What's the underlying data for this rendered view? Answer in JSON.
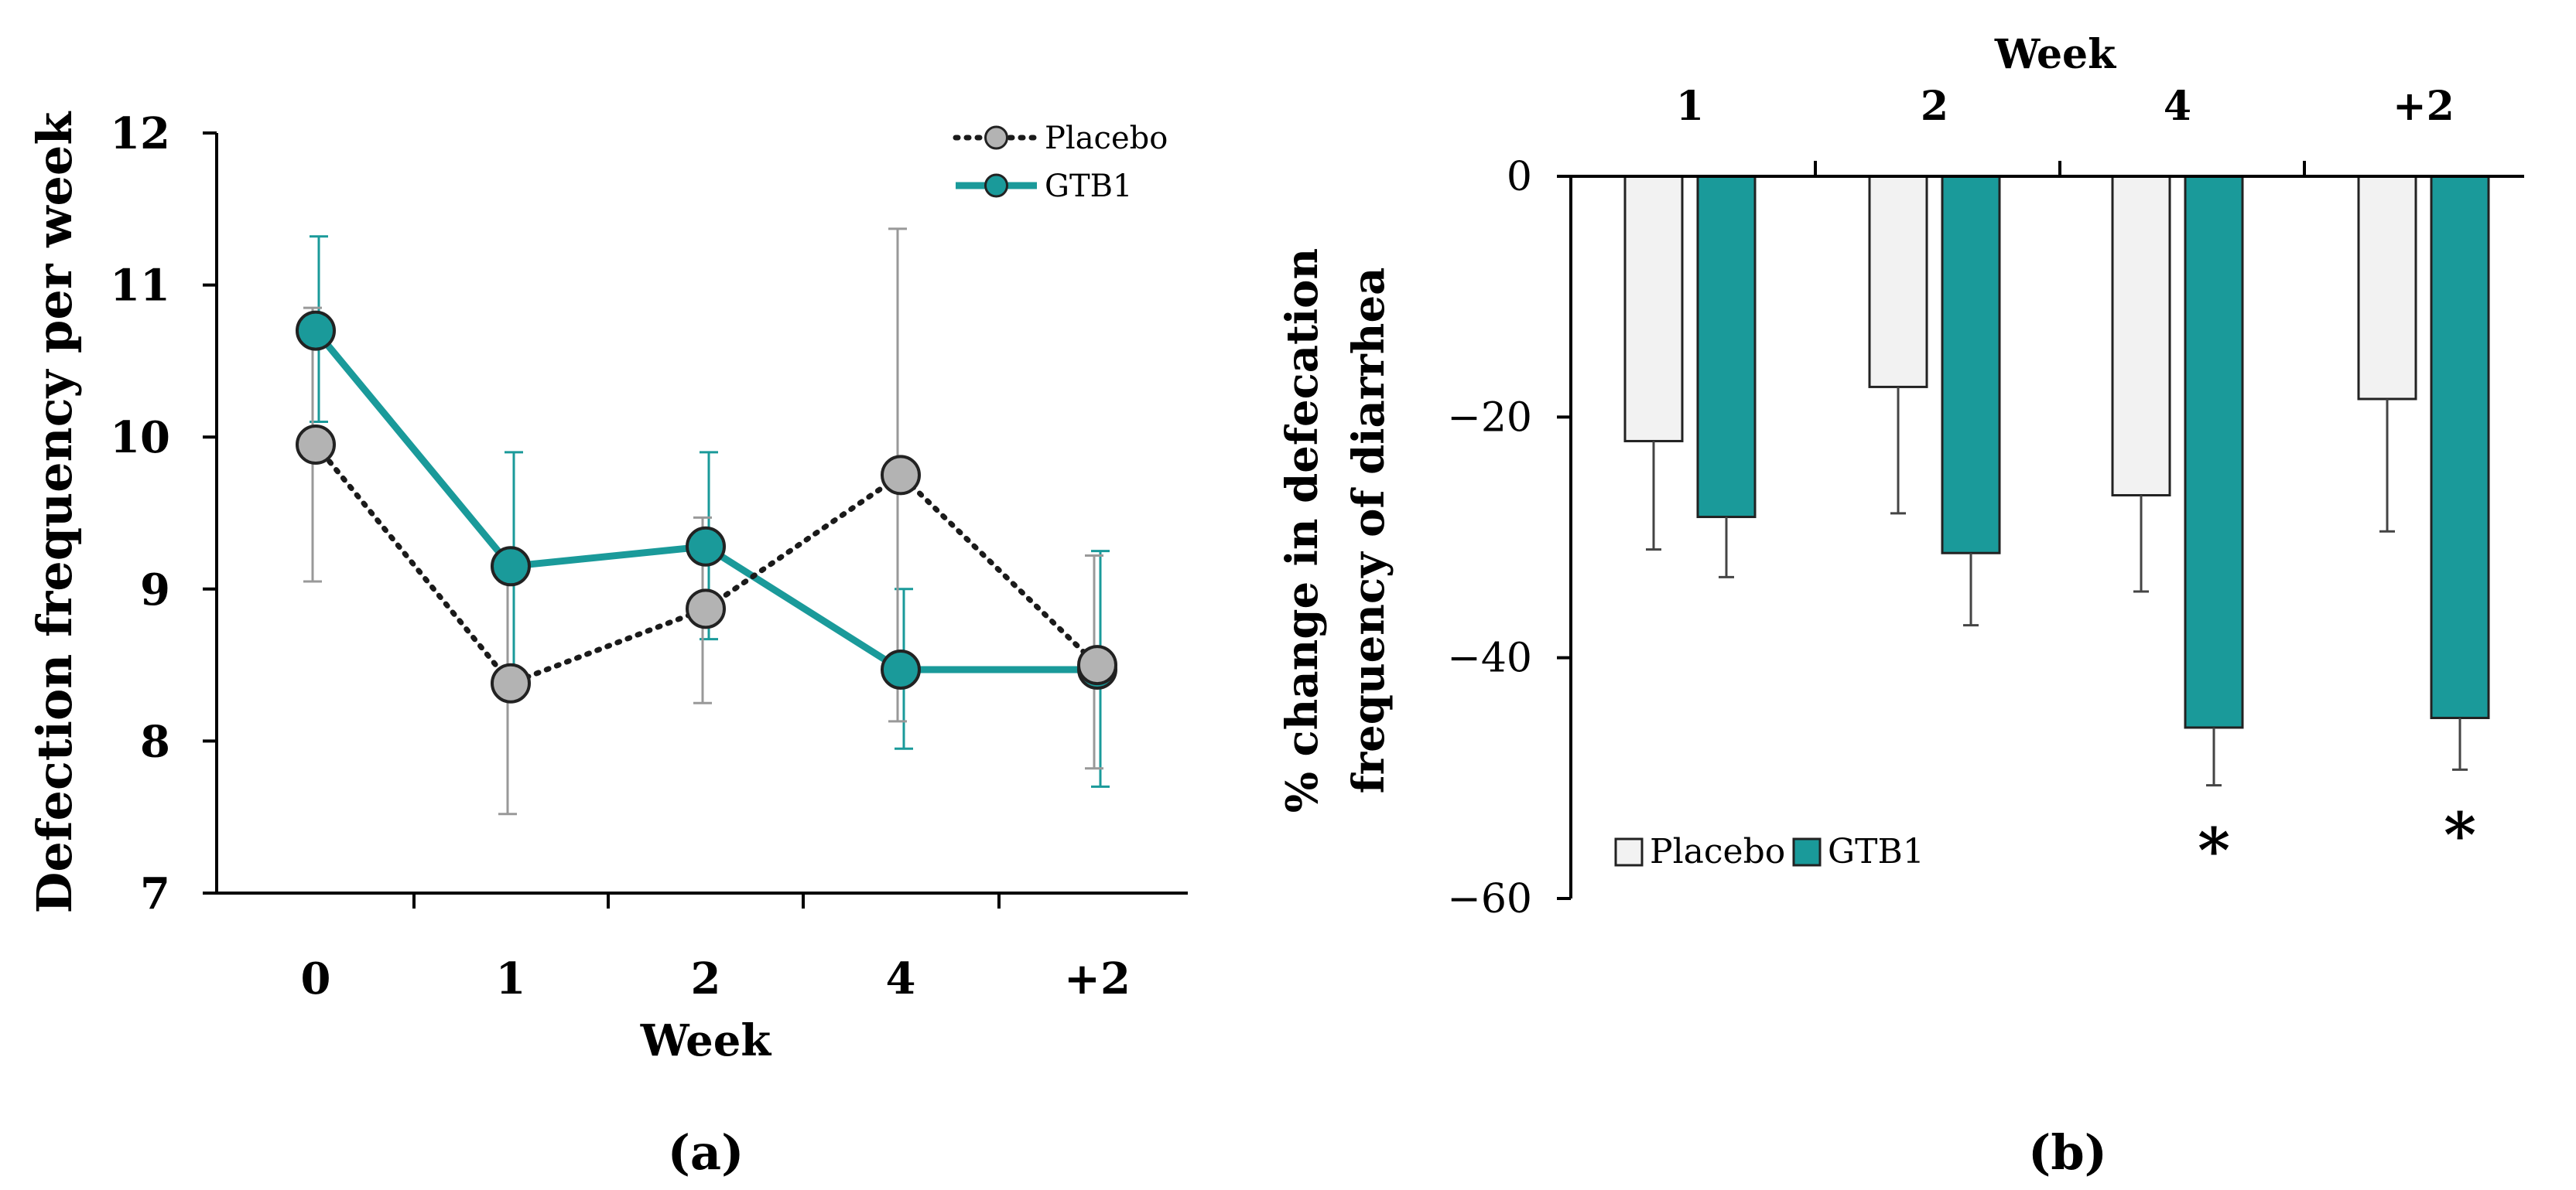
{
  "chart_data": [
    {
      "type": "line",
      "panel_label": "(a)",
      "title": "",
      "xlabel": "Week",
      "ylabel": "Defection frequency per week",
      "categories": [
        "0",
        "1",
        "2",
        "4",
        "+2"
      ],
      "ylim": [
        7,
        12
      ],
      "yticks": [
        "7",
        "8",
        "9",
        "10",
        "11",
        "12"
      ],
      "grid": false,
      "legend_position": "top-right",
      "series": [
        {
          "name": "Placebo",
          "style": "dotted",
          "color": "#1a1a1a",
          "marker_color": "#b3b3b3",
          "values": [
            9.95,
            8.38,
            8.87,
            9.75,
            8.5
          ],
          "err_low": [
            9.05,
            7.52,
            8.25,
            8.13,
            7.82
          ],
          "err_high": [
            10.85,
            9.05,
            9.47,
            11.37,
            9.22
          ]
        },
        {
          "name": "GTB1",
          "style": "solid",
          "color": "#1a9a9a",
          "marker_color": "#1a9a9a",
          "values": [
            10.7,
            9.15,
            9.28,
            8.47,
            8.47
          ],
          "err_low": [
            10.1,
            8.38,
            8.67,
            7.95,
            7.7
          ],
          "err_high": [
            11.32,
            9.9,
            9.9,
            9.0,
            9.25
          ]
        }
      ]
    },
    {
      "type": "bar",
      "panel_label": "(b)",
      "title": "",
      "xlabel": "Week",
      "xaxis_position": "top",
      "ylabel_line1": "% change in defecation",
      "ylabel_line2": "frequency of diarrhea",
      "categories": [
        "1",
        "2",
        "4",
        "+2"
      ],
      "ylim": [
        -60,
        0
      ],
      "yticks": [
        "0",
        "−20",
        "−40",
        "−60"
      ],
      "grid": false,
      "legend_position": "bottom-left",
      "series": [
        {
          "name": "Placebo",
          "color": "#f2f2f2",
          "values": [
            -22,
            -17.5,
            -26.5,
            -18.5
          ],
          "err": [
            9,
            10.5,
            8,
            11
          ]
        },
        {
          "name": "GTB1",
          "color": "#1a9a9a",
          "values": [
            -28.3,
            -31.3,
            -45.8,
            -45
          ],
          "err": [
            5,
            6,
            4.8,
            4.3
          ]
        }
      ],
      "significance": [
        "",
        "",
        "*",
        "*"
      ]
    }
  ]
}
